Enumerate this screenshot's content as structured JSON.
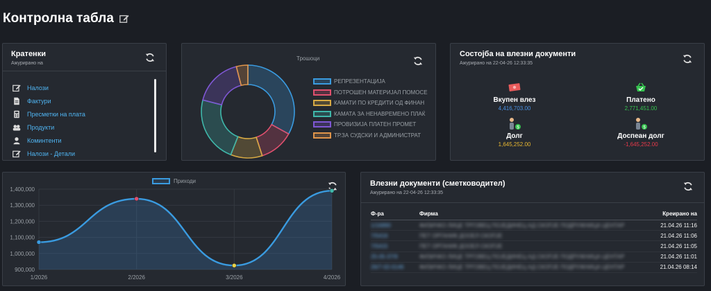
{
  "page": {
    "title": "Контролна табла"
  },
  "colors": {
    "link": "#4fb3f0",
    "green": "#36c24f",
    "amber": "#e8b731",
    "red": "#e8394a",
    "blue": "#4a90e2"
  },
  "shortcuts": {
    "title": "Кратенки",
    "subtitle": "Ажурирано на",
    "items": [
      {
        "label": "Налози",
        "icon": "edit-icon"
      },
      {
        "label": "Фактури",
        "icon": "invoice-icon"
      },
      {
        "label": "Пресметки на плата",
        "icon": "calculator-icon"
      },
      {
        "label": "Продукти",
        "icon": "products-icon"
      },
      {
        "label": "Коминтенти",
        "icon": "user-icon"
      },
      {
        "label": "Налози - Детали",
        "icon": "edit-icon"
      }
    ]
  },
  "expenses": {
    "title": "Трошоци",
    "legend": [
      "РЕПРЕЗЕНТАЦИЈА",
      "ПОТРОШЕН МАТЕРИЈАЛ ПОМОСЕ",
      "КАМАТИ ПО КРЕДИТИ ОД ФИНАН",
      "КАМАТА ЗА НЕНАВРЕМЕНО ПЛАЌ",
      "ПРОВИЗИЈА ПЛАТЕН ПРОМЕТ",
      "ТР.ЗА СУДСКИ И АДМИНИСТРАТ"
    ]
  },
  "incoming_docs": {
    "title": "Состојба на влезни документи",
    "subtitle": "Ажурирано на 22-04-26 12:33:35",
    "total_label": "Вкупен влез",
    "total_value": "4,416,703.00",
    "paid_label": "Платено",
    "paid_value": "2,771,451.00",
    "debt_label": "Долг",
    "debt_value": "1,645,252.00",
    "due_label": "Доспеан долг",
    "due_value": "-1,645,252.00"
  },
  "accountant": {
    "title": "Влезни документи (сметководител)",
    "subtitle": "Ажурирано на 22-04-26 12:33:35",
    "columns": [
      "Ф-ра",
      "Фирма",
      "Креирано на"
    ],
    "rows": [
      {
        "no": "1/16890",
        "firm": "ФИЗИЧКО ЛИЦЕ ТРГОВЕЦ ПОЈЕДИНЕЦ АД СКОПЈЕ ПОДРУЖНИЦА ЦЕНТАР",
        "date": "21.04.26 11:16"
      },
      {
        "no": "7/5416",
        "firm": "ПЕТ ОРГАНИК ДООЕЛ СКОПЈЕ",
        "date": "21.04.26 11:06"
      },
      {
        "no": "7/5415",
        "firm": "ПЕТ ОРГАНИК ДООЕЛ СКОПЈЕ",
        "date": "21.04.26 11:05"
      },
      {
        "no": "25-05-37/9",
        "firm": "ФИЗИЧКО ЛИЦЕ ТРГОВЕЦ ПОЈЕДИНЕЦ АД СКОПЈЕ ПОДРУЖНИЦА ЦЕНТАР",
        "date": "21.04.26 11:01"
      },
      {
        "no": "26/7-02-0146",
        "firm": "ФИЗИЧКО ЛИЦЕ ТРГОВЕЦ ПОЈЕДИНЕЦ АД СКОПЈЕ ПОДРУЖНИЦА ЦЕНТАР",
        "date": "21.04.26 08:14"
      }
    ]
  },
  "chart_data": [
    {
      "type": "pie",
      "title": "Трошоци",
      "labels": [
        "РЕПРЕЗЕНТАЦИЈА",
        "ПОТРОШЕН МАТЕРИЈАЛ ПОМОСЕ",
        "КАМАТИ ПО КРЕДИТИ ОД ФИНАН",
        "КАМАТА ЗА НЕНАВРЕМЕНО ПЛАЌ",
        "ПРОВИЗИЈА ПЛАТЕН ПРОМЕТ",
        "ТР.ЗА СУДСКИ И АДМИНИСТРАТ"
      ],
      "values": [
        33,
        12,
        11,
        23,
        17,
        4
      ],
      "colors": [
        "#3a9be0",
        "#e0506e",
        "#d8aa44",
        "#3fb7aa",
        "#7f57d4",
        "#e0954a"
      ],
      "legend": "right"
    },
    {
      "type": "area",
      "categories": [
        "1/2026",
        "2/2026",
        "3/2026",
        "4/2026"
      ],
      "series": [
        {
          "name": "Приходи",
          "values": [
            1070000,
            1340000,
            925000,
            1390000
          ]
        }
      ],
      "ylim": [
        900000,
        1400000
      ],
      "yticks": [
        "900,000",
        "1,000,000",
        "1,100,000",
        "1,200,000",
        "1,300,000",
        "1,400,000"
      ],
      "point_colors": [
        "#3a9be0",
        "#e0506e",
        "#e8d24a",
        "#3fb7aa"
      ],
      "grid": true,
      "legend": "top"
    }
  ]
}
